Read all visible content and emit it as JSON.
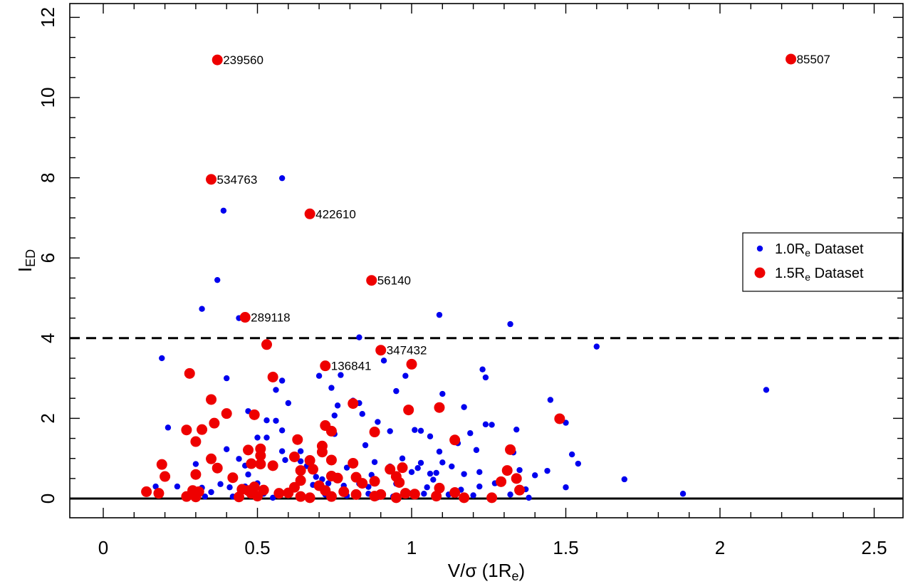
{
  "chart_data": {
    "type": "scatter",
    "title": "",
    "xlabel": "V/σ (1R",
    "xlabel_sub": "e",
    "xlabel_suffix": ")",
    "ylabel": "I",
    "ylabel_sub": "ED",
    "xlim": [
      -0.1,
      2.6
    ],
    "ylim": [
      -0.5,
      12.5
    ],
    "xticks": [
      0,
      0.5,
      1,
      1.5,
      2,
      2.5
    ],
    "xtick_labels": [
      "0",
      "0.5",
      "1",
      "1.5",
      "2",
      "2.5"
    ],
    "yticks": [
      0,
      2,
      4,
      6,
      8,
      10,
      12
    ],
    "ytick_labels": [
      "0",
      "2",
      "4",
      "6",
      "8",
      "10",
      "12"
    ],
    "grid": false,
    "legend_position": "right",
    "reference_lines": [
      {
        "y": 4,
        "style": "dashed"
      },
      {
        "y": 0,
        "style": "solid"
      }
    ],
    "series": [
      {
        "name": "1.0R",
        "name_sub": "e",
        "name_suffix": " Dataset",
        "color": "#0000ee",
        "marker_size": "small",
        "points": [
          [
            0.58,
            7.99
          ],
          [
            0.39,
            7.18
          ],
          [
            0.37,
            5.45
          ],
          [
            0.32,
            4.73
          ],
          [
            0.44,
            4.5
          ],
          [
            1.09,
            4.58
          ],
          [
            1.32,
            4.35
          ],
          [
            0.83,
            4.02
          ],
          [
            1.6,
            3.79
          ],
          [
            0.19,
            3.5
          ],
          [
            0.91,
            3.44
          ],
          [
            0.4,
            3.0
          ],
          [
            0.7,
            3.06
          ],
          [
            0.77,
            3.08
          ],
          [
            1.23,
            3.22
          ],
          [
            1.24,
            3.02
          ],
          [
            0.58,
            2.94
          ],
          [
            0.98,
            3.06
          ],
          [
            0.74,
            2.76
          ],
          [
            0.56,
            2.71
          ],
          [
            0.95,
            2.68
          ],
          [
            1.1,
            2.61
          ],
          [
            2.15,
            2.71
          ],
          [
            0.6,
            2.38
          ],
          [
            0.81,
            2.44
          ],
          [
            0.83,
            2.38
          ],
          [
            0.76,
            2.32
          ],
          [
            1.45,
            2.46
          ],
          [
            0.75,
            2.07
          ],
          [
            0.84,
            2.11
          ],
          [
            1.17,
            2.28
          ],
          [
            0.47,
            2.18
          ],
          [
            0.21,
            1.77
          ],
          [
            0.53,
            1.95
          ],
          [
            0.56,
            1.94
          ],
          [
            0.89,
            1.91
          ],
          [
            1.01,
            1.71
          ],
          [
            1.03,
            1.69
          ],
          [
            1.24,
            1.85
          ],
          [
            1.26,
            1.84
          ],
          [
            1.34,
            1.72
          ],
          [
            1.5,
            1.89
          ],
          [
            0.58,
            1.7
          ],
          [
            0.75,
            1.61
          ],
          [
            0.93,
            1.68
          ],
          [
            1.06,
            1.55
          ],
          [
            1.19,
            1.63
          ],
          [
            0.5,
            1.52
          ],
          [
            0.53,
            1.52
          ],
          [
            0.85,
            1.33
          ],
          [
            0.4,
            1.23
          ],
          [
            0.58,
            1.18
          ],
          [
            0.64,
            1.18
          ],
          [
            1.09,
            1.17
          ],
          [
            1.15,
            1.38
          ],
          [
            1.21,
            1.21
          ],
          [
            1.33,
            1.15
          ],
          [
            1.52,
            1.1
          ],
          [
            0.44,
            0.99
          ],
          [
            0.59,
            0.96
          ],
          [
            0.64,
            0.93
          ],
          [
            0.88,
            0.91
          ],
          [
            0.97,
            1.0
          ],
          [
            1.03,
            0.89
          ],
          [
            1.1,
            0.9
          ],
          [
            1.13,
            0.8
          ],
          [
            1.54,
            0.87
          ],
          [
            0.3,
            0.86
          ],
          [
            0.46,
            0.82
          ],
          [
            0.66,
            0.81
          ],
          [
            0.79,
            0.77
          ],
          [
            0.81,
            0.83
          ],
          [
            0.93,
            0.8
          ],
          [
            1.0,
            0.66
          ],
          [
            1.02,
            0.76
          ],
          [
            1.06,
            0.62
          ],
          [
            1.08,
            0.64
          ],
          [
            1.22,
            0.66
          ],
          [
            1.35,
            0.71
          ],
          [
            1.44,
            0.69
          ],
          [
            0.3,
            0.63
          ],
          [
            0.47,
            0.6
          ],
          [
            0.69,
            0.54
          ],
          [
            0.71,
            0.48
          ],
          [
            0.87,
            0.59
          ],
          [
            1.07,
            0.47
          ],
          [
            1.17,
            0.61
          ],
          [
            1.27,
            0.38
          ],
          [
            1.4,
            0.58
          ],
          [
            1.69,
            0.48
          ],
          [
            0.17,
            0.3
          ],
          [
            0.24,
            0.3
          ],
          [
            0.32,
            0.27
          ],
          [
            0.38,
            0.36
          ],
          [
            0.41,
            0.28
          ],
          [
            0.46,
            0.3
          ],
          [
            0.5,
            0.38
          ],
          [
            0.62,
            0.29
          ],
          [
            0.68,
            0.34
          ],
          [
            0.73,
            0.38
          ],
          [
            0.78,
            0.32
          ],
          [
            0.83,
            0.37
          ],
          [
            0.86,
            0.29
          ],
          [
            0.95,
            0.37
          ],
          [
            1.05,
            0.28
          ],
          [
            1.16,
            0.22
          ],
          [
            1.22,
            0.3
          ],
          [
            1.29,
            0.37
          ],
          [
            1.37,
            0.23
          ],
          [
            1.5,
            0.28
          ],
          [
            0.28,
            0.1
          ],
          [
            0.35,
            0.16
          ],
          [
            0.42,
            0.05
          ],
          [
            0.52,
            0.12
          ],
          [
            0.55,
            0.02
          ],
          [
            0.6,
            0.14
          ],
          [
            0.64,
            0.09
          ],
          [
            0.72,
            0.1
          ],
          [
            0.79,
            0.07
          ],
          [
            0.86,
            0.12
          ],
          [
            0.94,
            0.05
          ],
          [
            0.99,
            0.14
          ],
          [
            1.04,
            0.12
          ],
          [
            1.12,
            0.1
          ],
          [
            1.2,
            0.08
          ],
          [
            1.32,
            0.1
          ],
          [
            1.38,
            0.02
          ],
          [
            1.88,
            0.12
          ],
          [
            0.33,
            0.05
          ],
          [
            0.89,
            0.03
          ]
        ]
      },
      {
        "name": "1.5R",
        "name_sub": "e",
        "name_suffix": " Dataset",
        "color": "#ee0000",
        "marker_size": "large",
        "points": [
          [
            0.37,
            10.94
          ],
          [
            2.23,
            10.96
          ],
          [
            0.35,
            7.96
          ],
          [
            0.67,
            7.1
          ],
          [
            0.87,
            5.44
          ],
          [
            0.46,
            4.52
          ],
          [
            0.53,
            3.84
          ],
          [
            0.9,
            3.7
          ],
          [
            0.72,
            3.31
          ],
          [
            1.0,
            3.35
          ],
          [
            0.28,
            3.12
          ],
          [
            0.55,
            3.03
          ],
          [
            0.35,
            2.47
          ],
          [
            0.81,
            2.37
          ],
          [
            0.99,
            2.21
          ],
          [
            1.09,
            2.27
          ],
          [
            0.4,
            2.12
          ],
          [
            0.49,
            2.09
          ],
          [
            0.36,
            1.88
          ],
          [
            0.32,
            1.72
          ],
          [
            0.27,
            1.71
          ],
          [
            0.72,
            1.82
          ],
          [
            0.74,
            1.68
          ],
          [
            0.88,
            1.66
          ],
          [
            0.63,
            1.47
          ],
          [
            1.14,
            1.46
          ],
          [
            1.48,
            1.99
          ],
          [
            0.3,
            1.42
          ],
          [
            0.51,
            1.24
          ],
          [
            0.71,
            1.31
          ],
          [
            0.47,
            1.21
          ],
          [
            1.32,
            1.22
          ],
          [
            0.35,
            0.99
          ],
          [
            0.51,
            1.07
          ],
          [
            0.62,
            1.04
          ],
          [
            0.67,
            0.95
          ],
          [
            0.71,
            1.16
          ],
          [
            0.74,
            0.96
          ],
          [
            0.19,
            0.85
          ],
          [
            0.48,
            0.87
          ],
          [
            0.51,
            0.86
          ],
          [
            0.55,
            0.82
          ],
          [
            0.81,
            0.88
          ],
          [
            0.37,
            0.76
          ],
          [
            0.64,
            0.7
          ],
          [
            0.68,
            0.73
          ],
          [
            0.93,
            0.73
          ],
          [
            0.97,
            0.77
          ],
          [
            1.31,
            0.7
          ],
          [
            0.2,
            0.55
          ],
          [
            0.42,
            0.52
          ],
          [
            0.3,
            0.6
          ],
          [
            0.74,
            0.56
          ],
          [
            0.76,
            0.51
          ],
          [
            0.82,
            0.53
          ],
          [
            0.95,
            0.55
          ],
          [
            1.34,
            0.5
          ],
          [
            0.64,
            0.45
          ],
          [
            0.88,
            0.43
          ],
          [
            0.96,
            0.4
          ],
          [
            0.84,
            0.38
          ],
          [
            1.29,
            0.42
          ],
          [
            0.7,
            0.32
          ],
          [
            0.62,
            0.28
          ],
          [
            0.45,
            0.23
          ],
          [
            0.49,
            0.29
          ],
          [
            0.48,
            0.13
          ],
          [
            0.52,
            0.21
          ],
          [
            0.29,
            0.2
          ],
          [
            0.31,
            0.17
          ],
          [
            0.14,
            0.17
          ],
          [
            0.18,
            0.13
          ],
          [
            0.27,
            0.05
          ],
          [
            0.3,
            0.04
          ],
          [
            0.44,
            0.04
          ],
          [
            0.47,
            0.2
          ],
          [
            0.5,
            0.06
          ],
          [
            0.57,
            0.13
          ],
          [
            0.6,
            0.14
          ],
          [
            0.64,
            0.05
          ],
          [
            0.67,
            0.02
          ],
          [
            0.72,
            0.2
          ],
          [
            0.74,
            0.05
          ],
          [
            0.78,
            0.17
          ],
          [
            0.82,
            0.1
          ],
          [
            0.88,
            0.06
          ],
          [
            0.9,
            0.1
          ],
          [
            0.95,
            0.02
          ],
          [
            0.98,
            0.13
          ],
          [
            1.01,
            0.11
          ],
          [
            1.08,
            0.06
          ],
          [
            1.09,
            0.26
          ],
          [
            1.14,
            0.15
          ],
          [
            1.17,
            0.02
          ],
          [
            1.26,
            0.02
          ],
          [
            1.35,
            0.21
          ]
        ]
      }
    ],
    "annotations": [
      {
        "text": "239560",
        "x": 0.37,
        "y": 10.94
      },
      {
        "text": "85507",
        "x": 2.23,
        "y": 10.96
      },
      {
        "text": "534763",
        "x": 0.35,
        "y": 7.96
      },
      {
        "text": "422610",
        "x": 0.67,
        "y": 7.1
      },
      {
        "text": "56140",
        "x": 0.87,
        "y": 5.44
      },
      {
        "text": "289118",
        "x": 0.46,
        "y": 4.52
      },
      {
        "text": "347432",
        "x": 0.9,
        "y": 3.7
      },
      {
        "text": "136841",
        "x": 0.72,
        "y": 3.31
      }
    ]
  }
}
